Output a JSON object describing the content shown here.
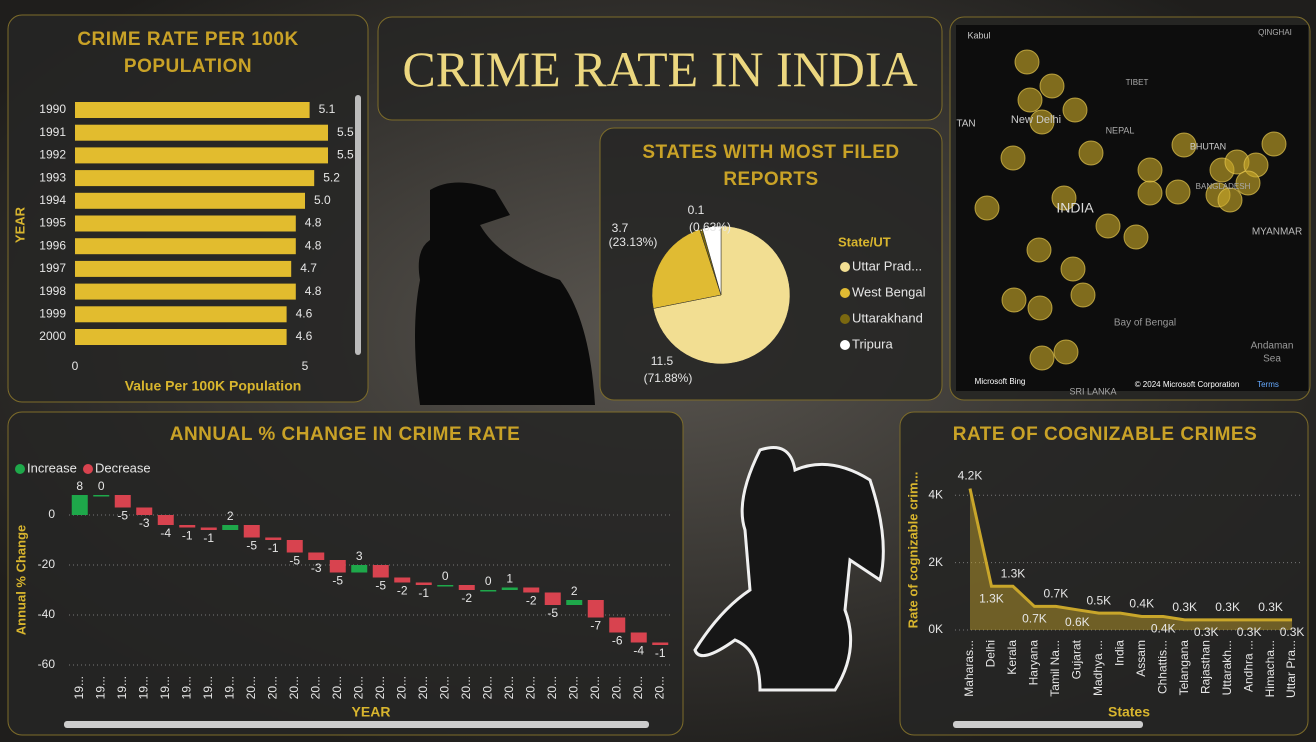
{
  "title": "CRIME RATE IN INDIA",
  "chart_data": [
    {
      "type": "hbar",
      "title": "CRIME RATE PER 100K POPULATION",
      "y_label": "YEAR",
      "x_label": "Value Per 100K Population",
      "categories": [
        "1990",
        "1991",
        "1992",
        "1993",
        "1994",
        "1995",
        "1996",
        "1997",
        "1998",
        "1999",
        "2000"
      ],
      "values": [
        5.1,
        5.5,
        5.5,
        5.2,
        5.0,
        4.8,
        4.8,
        4.7,
        4.8,
        4.6,
        4.6
      ],
      "value_labels": [
        "5.1",
        "5.5",
        "5.5",
        "5.2",
        "5.0",
        "4.8",
        "4.8",
        "4.7",
        "4.8",
        "4.6",
        "4.6"
      ],
      "color": "#e2bc2e",
      "xlim": [
        0,
        6
      ],
      "xticks": [
        0,
        5
      ]
    },
    {
      "type": "pie",
      "title": "STATES WITH MOST FILED REPORTS",
      "legend_title": "State/UT",
      "categories": [
        "Uttar Prad...",
        "West Bengal",
        "Uttarakhand",
        "Tripura"
      ],
      "values": [
        11.5,
        3.7,
        0.1,
        0.7
      ],
      "percent_labels": [
        "(71.88%)",
        "(23.13%)",
        "(0.63%)",
        null
      ],
      "colors": [
        "#f2de92",
        "#e0bb33",
        "#7a6810",
        "#ffffff"
      ]
    },
    {
      "type": "waterfall",
      "title": "ANNUAL % CHANGE IN CRIME RATE",
      "x_label": "YEAR",
      "y_label": "Annual % Change",
      "increase": {
        "name": "Increase",
        "color": "#1ea84a"
      },
      "decrease": {
        "name": "Decrease",
        "color": "#d8434f"
      },
      "categories": [
        "19...",
        "19...",
        "19...",
        "19...",
        "19...",
        "19...",
        "19...",
        "19...",
        "20...",
        "20...",
        "20...",
        "20...",
        "20...",
        "20...",
        "20...",
        "20...",
        "20...",
        "20...",
        "20...",
        "20...",
        "20...",
        "20...",
        "20...",
        "20...",
        "20...",
        "20...",
        "20...",
        "20..."
      ],
      "values": [
        8,
        0,
        -5,
        -3,
        -4,
        -1,
        -1,
        2,
        -5,
        -1,
        -5,
        -3,
        -5,
        3,
        -5,
        -2,
        -1,
        0,
        -2,
        0,
        1,
        -2,
        -5,
        2,
        -7,
        -6,
        -4,
        -1
      ],
      "ylim": [
        -62,
        10
      ],
      "yticks": [
        -60,
        -40,
        -20,
        0
      ],
      "grid": true
    },
    {
      "type": "area",
      "title": "RATE OF COGNIZABLE CRIMES",
      "x_label": "States",
      "y_label": "Rate of cognizable crim...",
      "categories": [
        "Maharas...",
        "Delhi",
        "Kerala",
        "Haryana",
        "Tamil Na...",
        "Gujarat",
        "Madhya ...",
        "India",
        "Assam",
        "Chhattis...",
        "Telangana",
        "Rajasthan",
        "Uttarakh...",
        "Andhra ...",
        "Himacha...",
        "Uttar Pra..."
      ],
      "values": [
        4200,
        1300,
        1300,
        700,
        700,
        600,
        500,
        500,
        400,
        400,
        300,
        300,
        300,
        300,
        300,
        300
      ],
      "value_labels": [
        "4.2K",
        "1.3K",
        "1.3K",
        "0.7K",
        "0.7K",
        "0.6K",
        "0.5K",
        null,
        "0.4K",
        "0.4K",
        "0.3K",
        "0.3K",
        "0.3K",
        "0.3K",
        "0.3K",
        "0.3K"
      ],
      "color": "#c9a62a",
      "ylim": [
        0,
        4900
      ],
      "yticks": [
        {
          "value": 0,
          "label": "0K"
        },
        {
          "value": 2000,
          "label": "2K"
        },
        {
          "value": 4000,
          "label": "4K"
        }
      ],
      "grid": true
    }
  ],
  "map": {
    "labels": [
      "Kabul",
      "QINGHAI",
      "TIBET",
      "TAN",
      "New Delhi",
      "NEPAL",
      "BHUTAN",
      "BANGLADESH",
      "INDIA",
      "MYANMAR",
      "Bay of Bengal",
      "Andaman",
      "Sea",
      "SRI LANKA",
      "Microsoft Bing",
      "© 2024 Microsoft Corporation",
      "Terms"
    ]
  }
}
